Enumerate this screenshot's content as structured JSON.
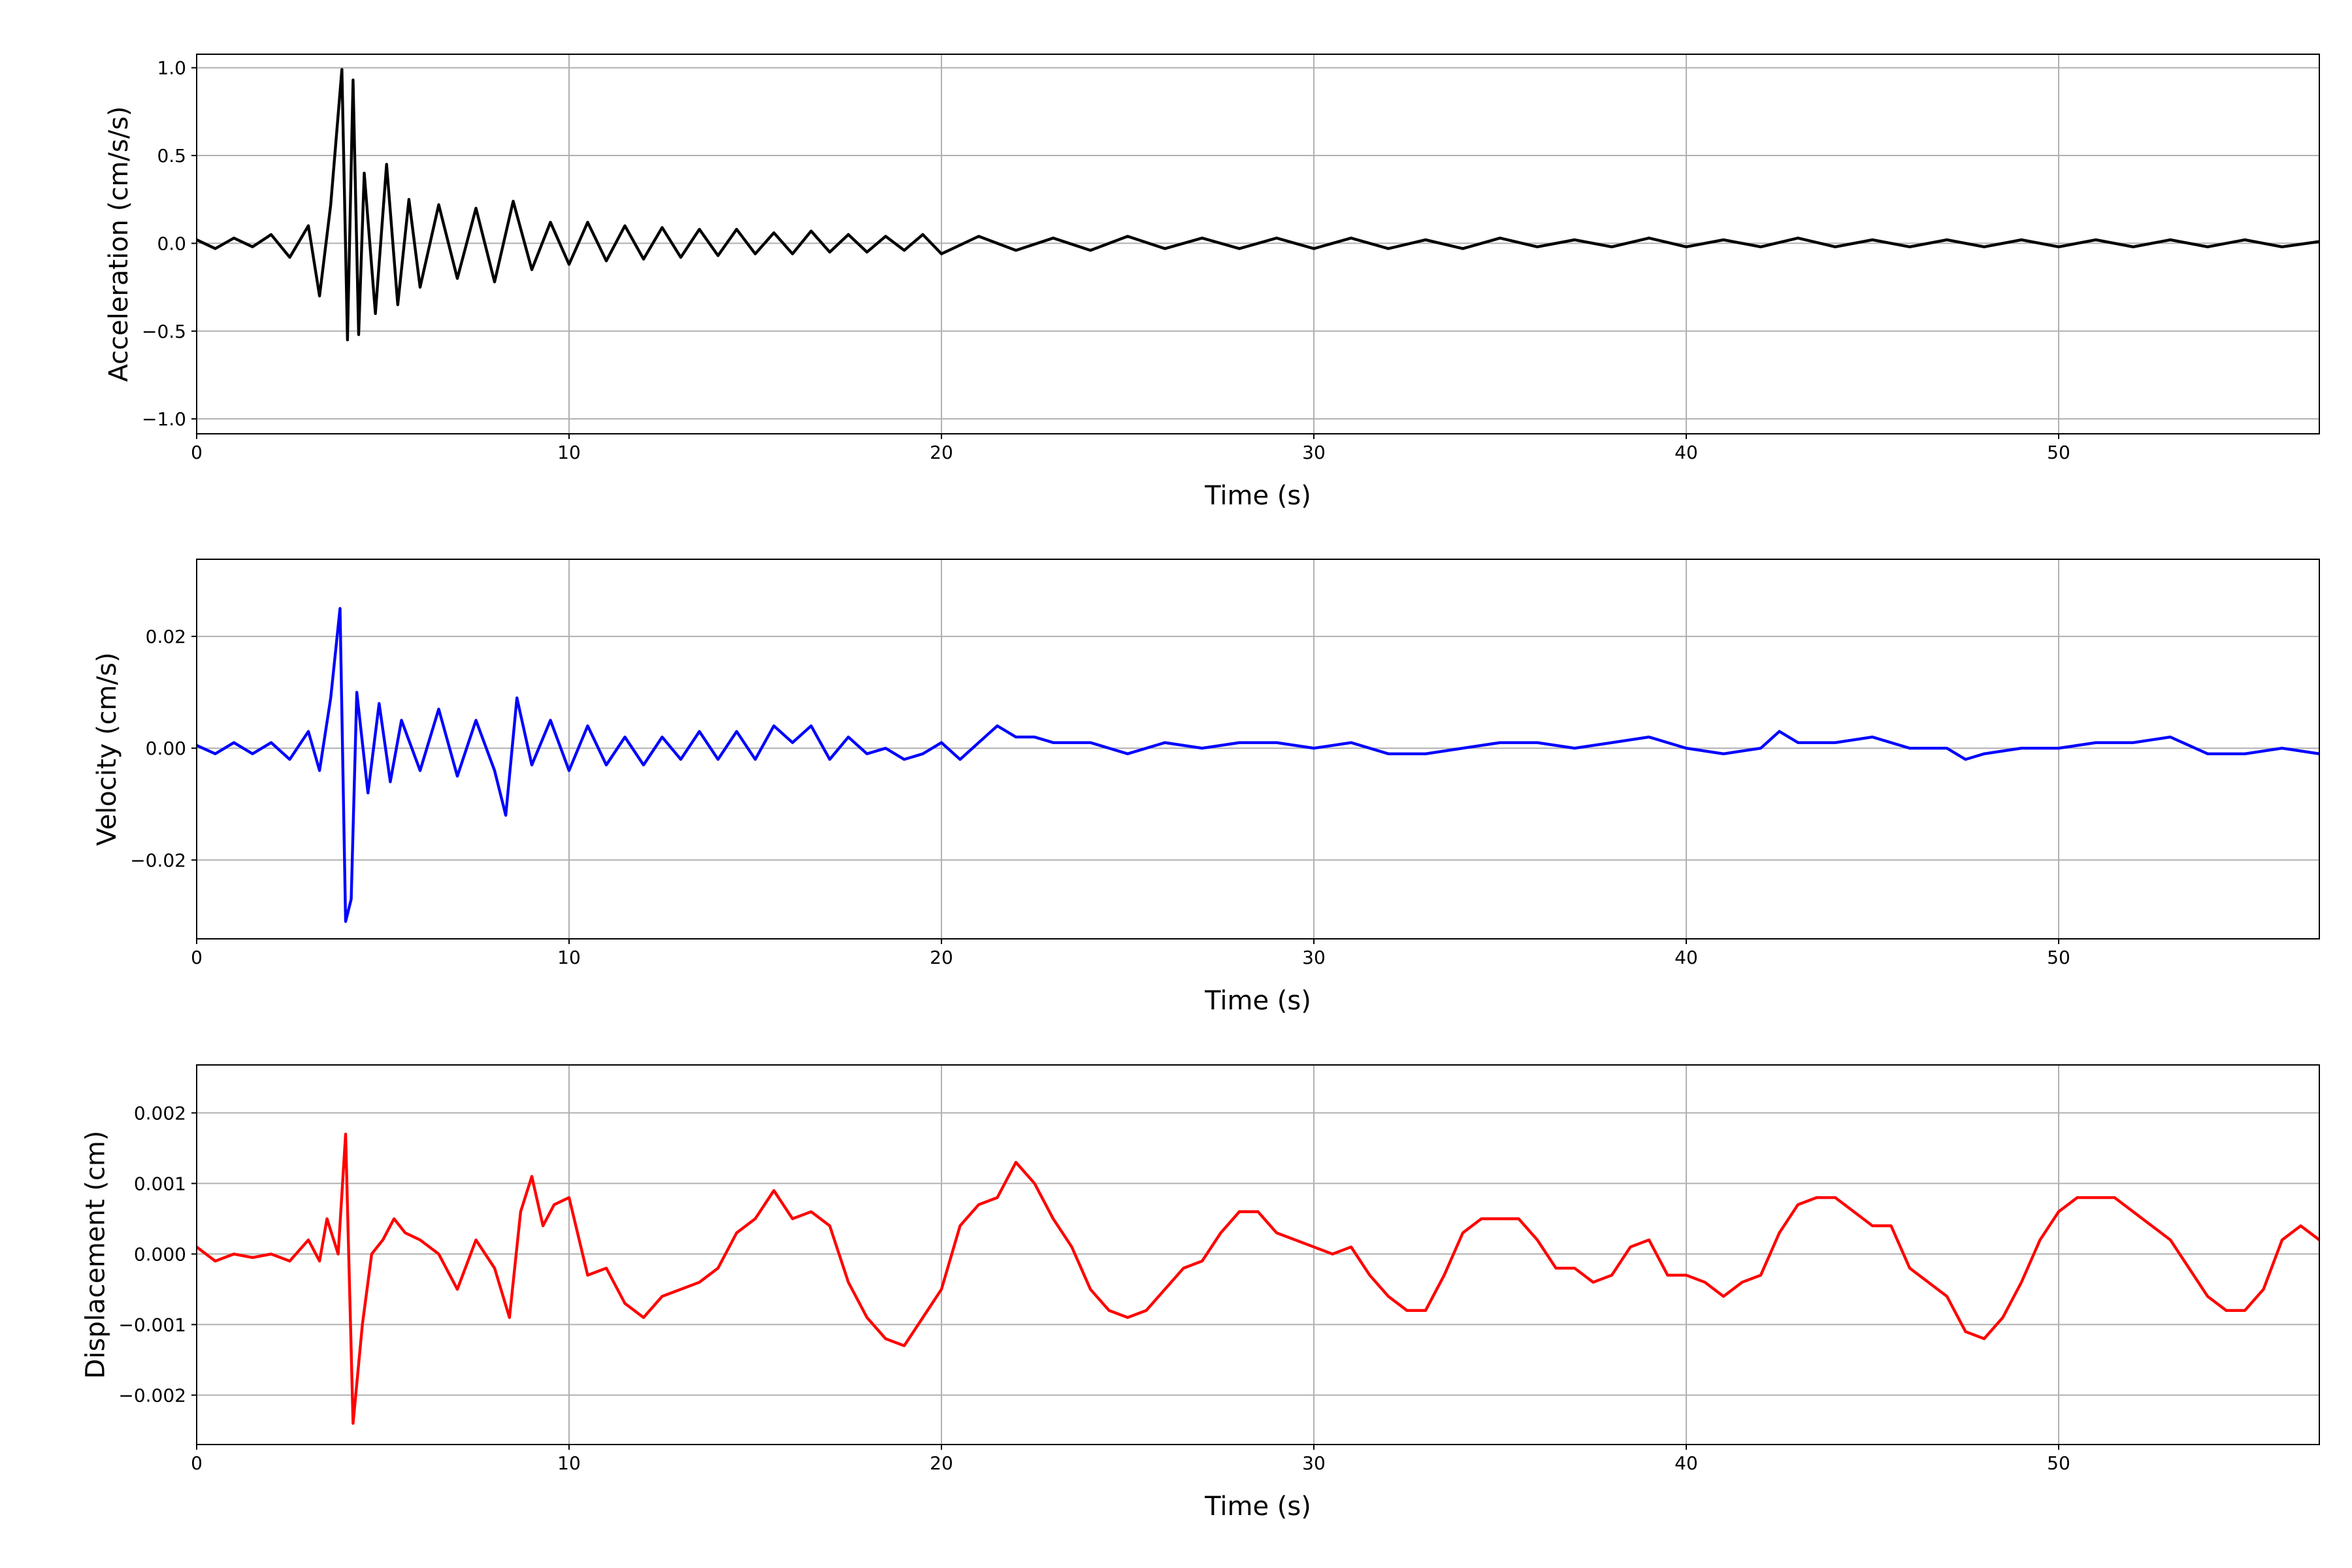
{
  "chart_data": [
    {
      "type": "line",
      "ylabel": "Acceleration (cm/s/s)",
      "xlabel": "Time (s)",
      "color": "#000000",
      "grid": true,
      "xlim": [
        0,
        57
      ],
      "xticks": [
        0,
        10,
        20,
        30,
        40,
        50
      ],
      "ylim": [
        -1.085,
        1.077
      ],
      "yticks": [
        {
          "value": -1.0,
          "label": "−1.0"
        },
        {
          "value": -0.5,
          "label": "−0.5"
        },
        {
          "value": 0,
          "label": "0.0"
        },
        {
          "value": 0.5,
          "label": "0.5"
        },
        {
          "value": 1.0,
          "label": "1.0"
        }
      ],
      "x": [
        0,
        0.5,
        1,
        1.5,
        2,
        2.5,
        3,
        3.3,
        3.6,
        3.9,
        4.05,
        4.2,
        4.35,
        4.5,
        4.8,
        5.1,
        5.4,
        5.7,
        6,
        6.5,
        7,
        7.5,
        8,
        8.5,
        9,
        9.5,
        10,
        10.5,
        11,
        11.5,
        12,
        12.5,
        13,
        13.5,
        14,
        14.5,
        15,
        15.5,
        16,
        16.5,
        17,
        17.5,
        18,
        18.5,
        19,
        19.5,
        20,
        21,
        22,
        23,
        24,
        25,
        26,
        27,
        28,
        29,
        30,
        31,
        32,
        33,
        34,
        35,
        36,
        37,
        38,
        39,
        40,
        41,
        42,
        43,
        44,
        45,
        46,
        47,
        48,
        49,
        50,
        51,
        52,
        53,
        54,
        55,
        56,
        57
      ],
      "values": [
        0.02,
        -0.03,
        0.03,
        -0.02,
        0.05,
        -0.08,
        0.1,
        -0.3,
        0.22,
        0.99,
        -0.55,
        0.93,
        -0.52,
        0.4,
        -0.4,
        0.45,
        -0.35,
        0.25,
        -0.25,
        0.22,
        -0.2,
        0.2,
        -0.22,
        0.24,
        -0.15,
        0.12,
        -0.12,
        0.12,
        -0.1,
        0.1,
        -0.09,
        0.09,
        -0.08,
        0.08,
        -0.07,
        0.08,
        -0.06,
        0.06,
        -0.06,
        0.07,
        -0.05,
        0.05,
        -0.05,
        0.04,
        -0.04,
        0.05,
        -0.06,
        0.04,
        -0.04,
        0.03,
        -0.04,
        0.04,
        -0.03,
        0.03,
        -0.03,
        0.03,
        -0.03,
        0.03,
        -0.03,
        0.02,
        -0.03,
        0.03,
        -0.02,
        0.02,
        -0.02,
        0.03,
        -0.02,
        0.02,
        -0.02,
        0.03,
        -0.02,
        0.02,
        -0.02,
        0.02,
        -0.02,
        0.02,
        -0.02,
        0.02,
        -0.02,
        0.02,
        -0.02,
        0.02,
        -0.02,
        0.01
      ]
    },
    {
      "type": "line",
      "ylabel": "Velocity (cm/s)",
      "xlabel": "Time (s)",
      "color": "#0000ff",
      "grid": true,
      "xlim": [
        0,
        57
      ],
      "xticks": [
        0,
        10,
        20,
        30,
        40,
        50
      ],
      "ylim": [
        -0.0341,
        0.0338
      ],
      "yticks": [
        {
          "value": -0.02,
          "label": "−0.02"
        },
        {
          "value": 0,
          "label": "0.00"
        },
        {
          "value": 0.02,
          "label": "0.02"
        }
      ],
      "x": [
        0,
        0.5,
        1,
        1.5,
        2,
        2.5,
        3,
        3.3,
        3.6,
        3.85,
        4.0,
        4.15,
        4.3,
        4.6,
        4.9,
        5.2,
        5.5,
        6,
        6.5,
        7,
        7.5,
        8,
        8.3,
        8.6,
        9,
        9.5,
        10,
        10.5,
        11,
        11.5,
        12,
        12.5,
        13,
        13.5,
        14,
        14.5,
        15,
        15.5,
        16,
        16.5,
        17,
        17.5,
        18,
        18.5,
        19,
        19.5,
        20,
        20.5,
        21,
        21.5,
        22,
        22.5,
        23,
        24,
        25,
        26,
        27,
        28,
        29,
        30,
        31,
        32,
        33,
        34,
        35,
        36,
        37,
        38,
        39,
        40,
        41,
        42,
        42.5,
        43,
        44,
        45,
        46,
        47,
        47.5,
        48,
        49,
        50,
        51,
        52,
        53,
        54,
        55,
        56,
        57
      ],
      "values": [
        0.0005,
        -0.001,
        0.001,
        -0.001,
        0.001,
        -0.002,
        0.003,
        -0.004,
        0.009,
        0.025,
        -0.031,
        -0.027,
        0.01,
        -0.008,
        0.008,
        -0.006,
        0.005,
        -0.004,
        0.007,
        -0.005,
        0.005,
        -0.004,
        -0.012,
        0.009,
        -0.003,
        0.005,
        -0.004,
        0.004,
        -0.003,
        0.002,
        -0.003,
        0.002,
        -0.002,
        0.003,
        -0.002,
        0.003,
        -0.002,
        0.004,
        0.001,
        0.004,
        -0.002,
        0.002,
        -0.001,
        0.0,
        -0.002,
        -0.001,
        0.001,
        -0.002,
        0.001,
        0.004,
        0.002,
        0.002,
        0.001,
        0.001,
        -0.001,
        0.001,
        0.0,
        0.001,
        0.001,
        0.0,
        0.001,
        -0.001,
        -0.001,
        0.0,
        0.001,
        0.001,
        0.0,
        0.001,
        0.002,
        0.0,
        -0.001,
        0.0,
        0.003,
        0.001,
        0.001,
        0.002,
        0.0,
        0.0,
        -0.002,
        -0.001,
        0.0,
        0.0,
        0.001,
        0.001,
        0.002,
        -0.001,
        -0.001,
        0.0,
        -0.001
      ]
    },
    {
      "type": "line",
      "ylabel": "Displacement (cm)",
      "xlabel": "Time (s)",
      "color": "#ff0000",
      "grid": true,
      "xlim": [
        0,
        57
      ],
      "xticks": [
        0,
        10,
        20,
        30,
        40,
        50
      ],
      "ylim": [
        -0.0027,
        0.00268
      ],
      "yticks": [
        {
          "value": -0.002,
          "label": "−0.002"
        },
        {
          "value": -0.001,
          "label": "−0.001"
        },
        {
          "value": 0,
          "label": "0.000"
        },
        {
          "value": 0.001,
          "label": "0.001"
        },
        {
          "value": 0.002,
          "label": "0.002"
        }
      ],
      "x": [
        0,
        0.5,
        1,
        1.5,
        2,
        2.5,
        3,
        3.3,
        3.5,
        3.8,
        4.0,
        4.2,
        4.45,
        4.7,
        5,
        5.3,
        5.6,
        6,
        6.5,
        7,
        7.5,
        8,
        8.4,
        8.7,
        9,
        9.3,
        9.6,
        10,
        10.5,
        11,
        11.5,
        12,
        12.5,
        13,
        13.5,
        14,
        14.5,
        15,
        15.5,
        16,
        16.5,
        17,
        17.5,
        18,
        18.5,
        19,
        19.5,
        20,
        20.5,
        21,
        21.5,
        22,
        22.5,
        23,
        23.5,
        24,
        24.5,
        25,
        25.5,
        26,
        26.5,
        27,
        27.5,
        28,
        28.5,
        29,
        29.5,
        30,
        30.5,
        31,
        31.5,
        32,
        32.5,
        33,
        33.5,
        34,
        34.5,
        35,
        35.5,
        36,
        36.5,
        37,
        37.5,
        38,
        38.5,
        39,
        39.5,
        40,
        40.5,
        41,
        41.5,
        42,
        42.5,
        43,
        43.5,
        44,
        44.5,
        45,
        45.5,
        46,
        46.5,
        47,
        47.5,
        48,
        48.5,
        49,
        49.5,
        50,
        50.5,
        51,
        51.5,
        52,
        52.5,
        53,
        53.5,
        54,
        54.5,
        55,
        55.5,
        56,
        56.5,
        57
      ],
      "values": [
        0.0001,
        -0.0001,
        0.0,
        -5e-05,
        0.0,
        -0.0001,
        0.0002,
        -0.0001,
        0.0005,
        0.0,
        0.0017,
        -0.0024,
        -0.001,
        0.0,
        0.0002,
        0.0005,
        0.0003,
        0.0002,
        0.0,
        -0.0005,
        0.0002,
        -0.0002,
        -0.0009,
        0.0006,
        0.0011,
        0.0004,
        0.0007,
        0.0008,
        -0.0003,
        -0.0002,
        -0.0007,
        -0.0009,
        -0.0006,
        -0.0005,
        -0.0004,
        -0.0002,
        0.0003,
        0.0005,
        0.0009,
        0.0005,
        0.0006,
        0.0004,
        -0.0004,
        -0.0009,
        -0.0012,
        -0.0013,
        -0.0009,
        -0.0005,
        0.0004,
        0.0007,
        0.0008,
        0.0013,
        0.001,
        0.0005,
        0.0001,
        -0.0005,
        -0.0008,
        -0.0009,
        -0.0008,
        -0.0005,
        -0.0002,
        -0.0001,
        0.0003,
        0.0006,
        0.0006,
        0.0003,
        0.0002,
        0.0001,
        0.0,
        0.0001,
        -0.0003,
        -0.0006,
        -0.0008,
        -0.0008,
        -0.0003,
        0.0003,
        0.0005,
        0.0005,
        0.0005,
        0.0002,
        -0.0002,
        -0.0002,
        -0.0004,
        -0.0003,
        0.0001,
        0.0002,
        -0.0003,
        -0.0003,
        -0.0004,
        -0.0006,
        -0.0004,
        -0.0003,
        0.0003,
        0.0007,
        0.0008,
        0.0008,
        0.0006,
        0.0004,
        0.0004,
        -0.0002,
        -0.0004,
        -0.0006,
        -0.0011,
        -0.0012,
        -0.0009,
        -0.0004,
        0.0002,
        0.0006,
        0.0008,
        0.0008,
        0.0008,
        0.0006,
        0.0004,
        0.0002,
        -0.0002,
        -0.0006,
        -0.0008,
        -0.0008,
        -0.0005,
        0.0002,
        0.0004,
        0.0002
      ]
    }
  ]
}
